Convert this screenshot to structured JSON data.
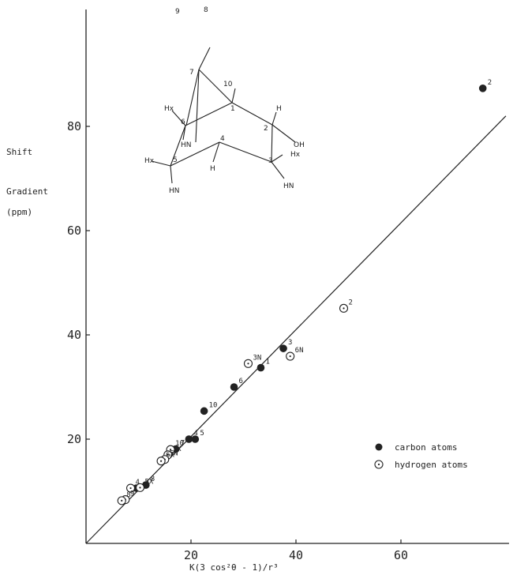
{
  "chart_data": {
    "type": "scatter",
    "title": "",
    "xlabel": "K(3 cos²θ - 1)/r³",
    "ylabel_lines": [
      "Shift",
      "Gradient",
      "(ppm)"
    ],
    "xlim": [
      0,
      80
    ],
    "ylim": [
      0,
      100
    ],
    "x_ticks": [
      20,
      40,
      60
    ],
    "x_tick_labels": [
      "20",
      "40",
      "60"
    ],
    "y_ticks": [
      20,
      40,
      60,
      80
    ],
    "y_tick_labels": [
      "20",
      "40",
      "60",
      "80"
    ],
    "grid": false,
    "legend_position": "right",
    "legend": [
      {
        "marker": "filled",
        "label": "carbon atoms"
      },
      {
        "marker": "open",
        "label": "hydrogen atoms"
      }
    ],
    "fit_line": {
      "from": [
        0,
        0
      ],
      "to": [
        80,
        82
      ]
    },
    "series": [
      {
        "name": "carbon atoms",
        "marker": "filled",
        "points": [
          {
            "x": 75.6,
            "y": 87.3,
            "label": "2"
          },
          {
            "x": 37.6,
            "y": 37.4,
            "label": "3"
          },
          {
            "x": 33.3,
            "y": 33.7,
            "label": "1"
          },
          {
            "x": 28.2,
            "y": 30.0,
            "label": "6"
          },
          {
            "x": 22.5,
            "y": 25.4,
            "label": "10"
          },
          {
            "x": 19.6,
            "y": 20.0,
            "label": "4"
          },
          {
            "x": 20.8,
            "y": 20.0,
            "label": "5"
          },
          {
            "x": 17.1,
            "y": 18.1,
            "label": "7"
          },
          {
            "x": 11.4,
            "y": 11.2,
            "label": "8"
          },
          {
            "x": 9.6,
            "y": 10.6,
            "label": ""
          }
        ]
      },
      {
        "name": "hydrogen atoms",
        "marker": "open",
        "points": [
          {
            "x": 49.1,
            "y": 45.1,
            "label": "2"
          },
          {
            "x": 38.9,
            "y": 35.9,
            "label": "6N"
          },
          {
            "x": 30.9,
            "y": 34.5,
            "label": "3N"
          },
          {
            "x": 16.1,
            "y": 18.0,
            "label": "10"
          },
          {
            "x": 15.6,
            "y": 17.0,
            "label": "3X"
          },
          {
            "x": 15.0,
            "y": 16.1,
            "label": "5N"
          },
          {
            "x": 14.3,
            "y": 15.8,
            "label": "6X"
          },
          {
            "x": 10.3,
            "y": 10.7,
            "label": "5X"
          },
          {
            "x": 8.5,
            "y": 10.6,
            "label": "4"
          },
          {
            "x": 7.5,
            "y": 8.4,
            "label": "9"
          },
          {
            "x": 6.8,
            "y": 8.2,
            "label": "8"
          }
        ]
      }
    ],
    "molecule_labels": [
      "9",
      "8",
      "7",
      "10",
      "1",
      "H",
      "2",
      "OH",
      "Hx",
      "Hx",
      "6",
      "HN",
      "4",
      "Hx",
      "5",
      "H",
      "3",
      "HN",
      "HN"
    ]
  }
}
